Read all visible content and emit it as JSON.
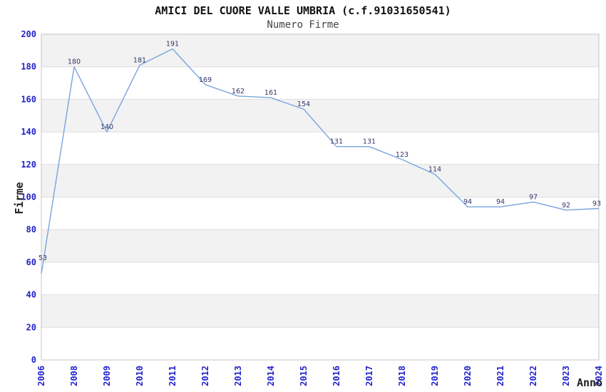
{
  "chart_data": {
    "type": "line",
    "title": "AMICI DEL CUORE VALLE UMBRIA (c.f.91031650541)",
    "subtitle": "Numero Firme",
    "xlabel": "Anno",
    "ylabel": "Firme",
    "categories": [
      "2006",
      "2008",
      "2009",
      "2010",
      "2011",
      "2012",
      "2013",
      "2014",
      "2015",
      "2016",
      "2017",
      "2018",
      "2019",
      "2020",
      "2021",
      "2022",
      "2023",
      "2024"
    ],
    "values": [
      53,
      180,
      140,
      181,
      191,
      169,
      162,
      161,
      154,
      131,
      131,
      123,
      114,
      94,
      94,
      97,
      92,
      93
    ],
    "ylim": [
      0,
      200
    ],
    "ytick_step": 20,
    "grid": true,
    "legend": false,
    "band_shading": "alternating",
    "colors": {
      "line": "#76a5de",
      "tick_label": "#2222cc",
      "data_label": "#333366",
      "band": "#f2f2f2",
      "gridline": "#dddddd",
      "border": "#c4c4c4",
      "title": "#111111",
      "subtitle": "#444444",
      "axis_title": "#222222",
      "background": "#ffffff"
    }
  }
}
